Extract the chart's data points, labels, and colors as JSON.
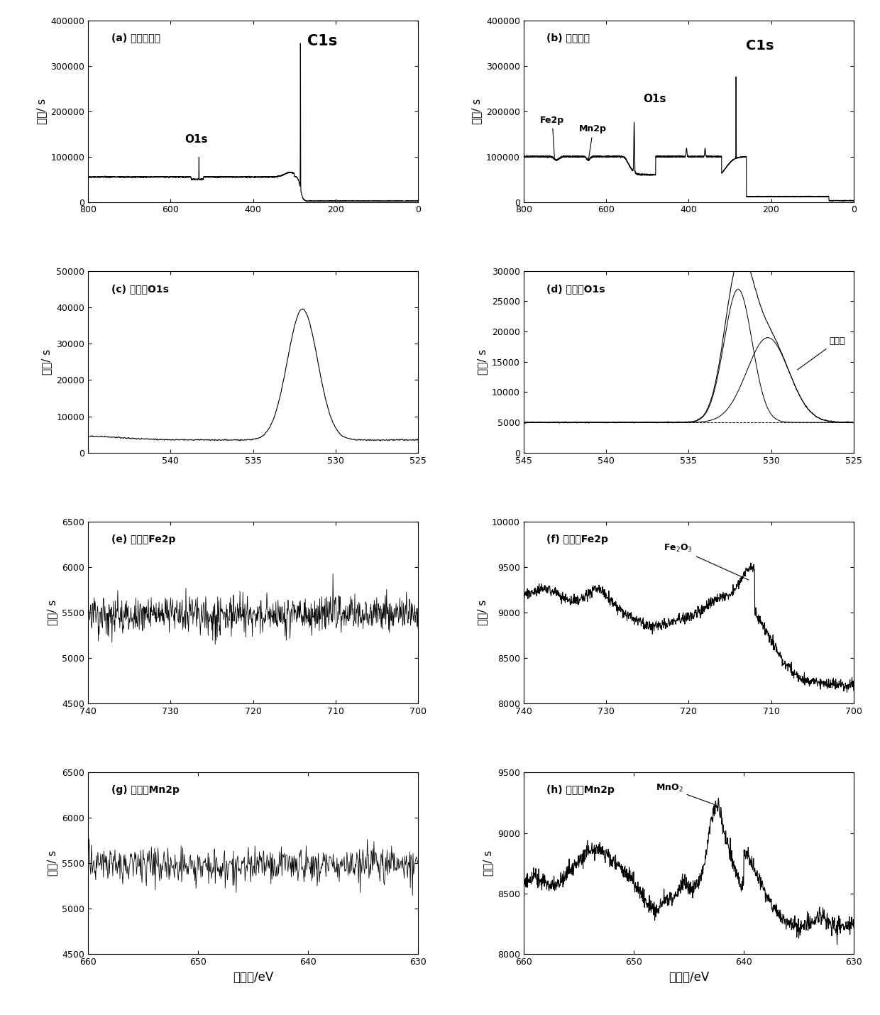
{
  "panels": [
    {
      "label": "(a) 改性前藻粉",
      "type": "survey_a",
      "xlim": [
        800,
        0
      ],
      "ylim": [
        0,
        400000
      ],
      "yticks": [
        0,
        100000,
        200000,
        300000,
        400000
      ],
      "xticks": [
        800,
        600,
        400,
        200,
        0
      ]
    },
    {
      "label": "(b) 改性藻粉",
      "type": "survey_b",
      "xlim": [
        800,
        0
      ],
      "ylim": [
        0,
        400000
      ],
      "yticks": [
        0,
        100000,
        200000,
        300000,
        400000
      ],
      "xticks": [
        800,
        600,
        400,
        200,
        0
      ]
    },
    {
      "label": "(c) 改性前O1s",
      "type": "o1s_before",
      "xlim": [
        545,
        525
      ],
      "ylim": [
        0,
        50000
      ],
      "yticks": [
        0,
        10000,
        20000,
        30000,
        40000,
        50000
      ],
      "xticks": [
        540,
        535,
        530,
        525
      ]
    },
    {
      "label": "(d) 改性后O1s",
      "type": "o1s_after",
      "xlim": [
        545,
        525
      ],
      "ylim": [
        0,
        30000
      ],
      "yticks": [
        0,
        5000,
        10000,
        15000,
        20000,
        25000,
        30000
      ],
      "xticks": [
        545,
        540,
        535,
        530,
        525
      ]
    },
    {
      "label": "(e) 改性前Fe2p",
      "type": "fe2p_before",
      "xlim": [
        740,
        700
      ],
      "ylim": [
        4500,
        6500
      ],
      "yticks": [
        4500,
        5000,
        5500,
        6000,
        6500
      ],
      "xticks": [
        740,
        730,
        720,
        710,
        700
      ]
    },
    {
      "label": "(f) 改性后Fe2p",
      "type": "fe2p_after",
      "xlim": [
        740,
        700
      ],
      "ylim": [
        8000,
        10000
      ],
      "yticks": [
        8000,
        8500,
        9000,
        9500,
        10000
      ],
      "xticks": [
        740,
        730,
        720,
        710,
        700
      ]
    },
    {
      "label": "(g) 改性前Mn2p",
      "type": "mn2p_before",
      "xlim": [
        660,
        630
      ],
      "ylim": [
        4500,
        6500
      ],
      "yticks": [
        4500,
        5000,
        5500,
        6000,
        6500
      ],
      "xticks": [
        660,
        650,
        640,
        630
      ]
    },
    {
      "label": "(h) 改性后Mn2p",
      "type": "mn2p_after",
      "xlim": [
        660,
        630
      ],
      "ylim": [
        8000,
        9500
      ],
      "yticks": [
        8000,
        8500,
        9000,
        9500
      ],
      "xticks": [
        660,
        650,
        640,
        630
      ]
    }
  ],
  "ylabel": "脉冲/ s",
  "xlabel": "结合能/eV",
  "line_color": "black",
  "line_width": 0.8
}
